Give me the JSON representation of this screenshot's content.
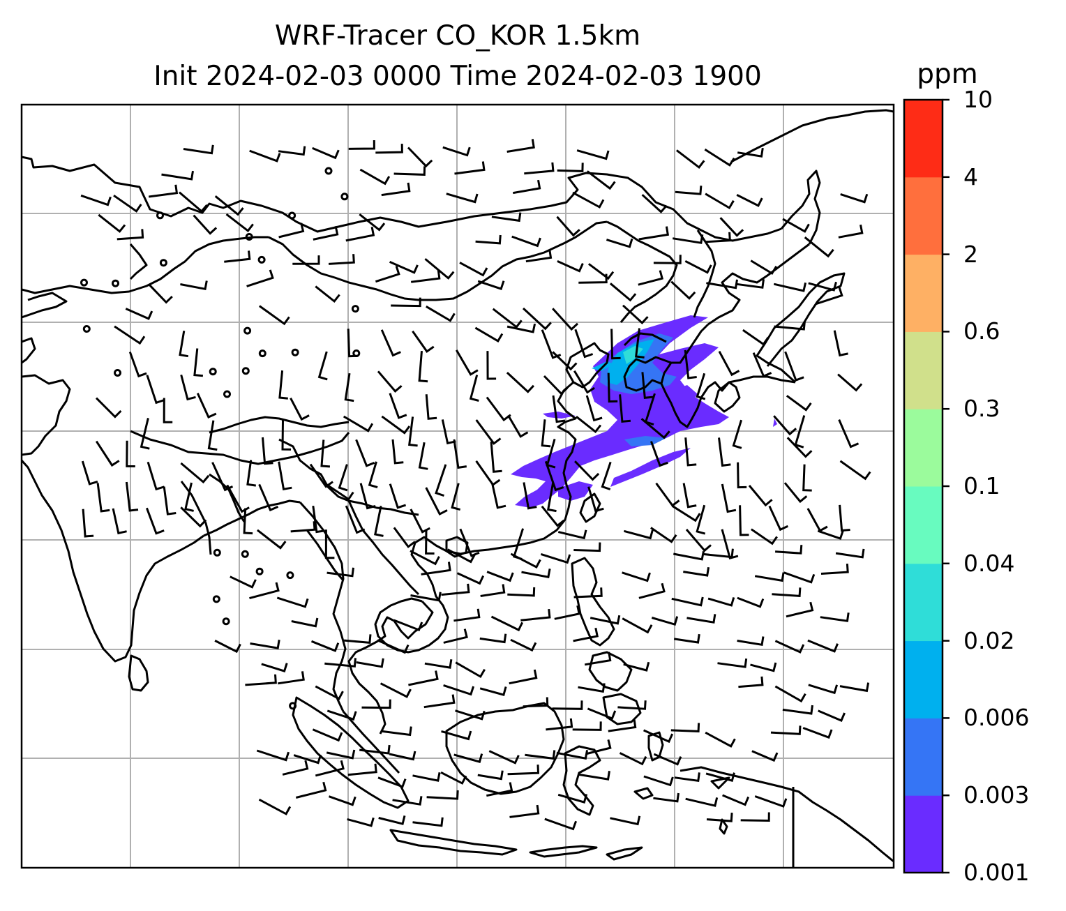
{
  "title": {
    "line1": "WRF-Tracer CO_KOR 1.5km",
    "line2": "Init 2024-02-03 0000 Time 2024-02-03 1900"
  },
  "colorbar": {
    "unit": "ppm",
    "levels": [
      "0.001",
      "0.003",
      "0.006",
      "0.02",
      "0.04",
      "0.1",
      "0.3",
      "0.6",
      "2",
      "4",
      "10"
    ],
    "colors": [
      "#6a2cff",
      "#3575f5",
      "#00b0ee",
      "#2fddd8",
      "#68fbbf",
      "#9bfb9c",
      "#d0e08b",
      "#feb064",
      "#ff6f3d",
      "#fe2c16"
    ]
  },
  "map": {
    "region": "East and Southeast Asia",
    "gridlines": true,
    "plume_color": "#6a2cff",
    "plume_core_colors": [
      "#3575f5",
      "#00b0ee",
      "#2fddd8"
    ],
    "wind_symbols": "barbs"
  }
}
